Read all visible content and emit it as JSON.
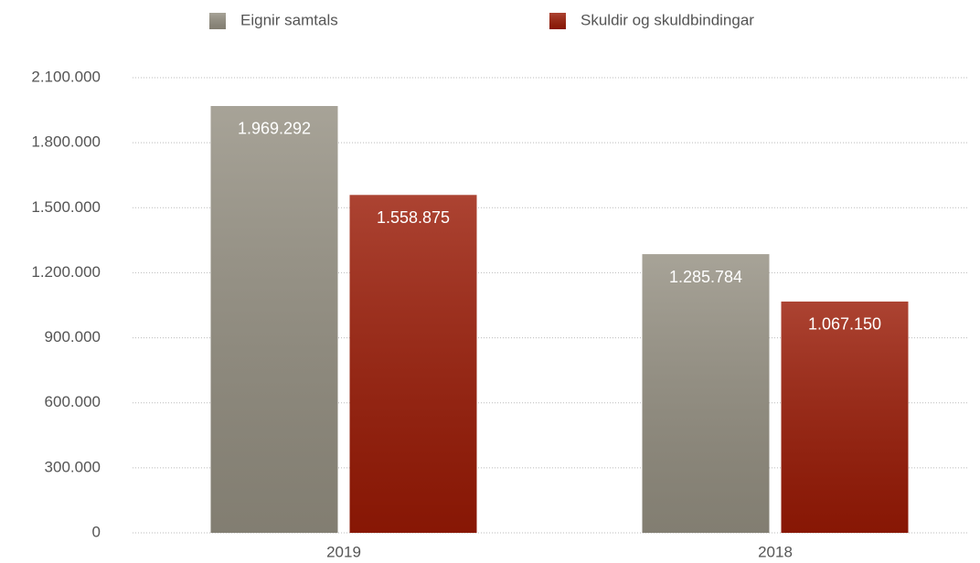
{
  "chart_data": {
    "type": "bar",
    "categories": [
      "2019",
      "2018"
    ],
    "series": [
      {
        "name": "Eignir samtals",
        "color": "#948f81",
        "values": [
          1969292,
          1285784
        ],
        "value_labels": [
          "1.969.292",
          "1.285.784"
        ]
      },
      {
        "name": "Skuldir og skuldbindingar",
        "color": "#9a1a05",
        "values": [
          1558875,
          1067150
        ],
        "value_labels": [
          "1.558.875",
          "1.067.150"
        ]
      }
    ],
    "ylim": [
      0,
      2100000
    ],
    "yticks": [
      0,
      {
        "value": 300000,
        "label": "300.000"
      },
      {
        "value": 600000,
        "label": "600.000"
      },
      {
        "value": 900000,
        "label": "900.000"
      },
      {
        "value": 1200000,
        "label": "1.200.000"
      },
      {
        "value": 1500000,
        "label": "1.500.000"
      },
      {
        "value": 1800000,
        "label": "1.800.000"
      },
      {
        "value": 2100000,
        "label": "2.100.000"
      }
    ],
    "grid": true,
    "legend": "top"
  }
}
